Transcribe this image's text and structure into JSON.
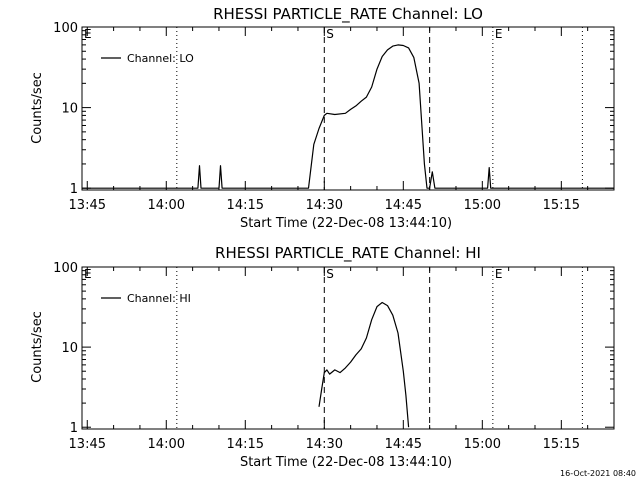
{
  "chart_data": [
    {
      "type": "line",
      "title": "RHESSI PARTICLE_RATE Channel: LO",
      "xlabel": "Start Time (22-Dec-08 13:44:10)",
      "ylabel": "Counts/sec",
      "yscale": "log",
      "ylim": [
        0.95,
        100
      ],
      "x_tick_labels": [
        "13:45",
        "14:00",
        "14:15",
        "14:30",
        "14:45",
        "15:00",
        "15:15"
      ],
      "y_tick_labels": [
        "1",
        "10",
        "100"
      ],
      "legend": {
        "label": "Channel: LO",
        "position": "top-left"
      },
      "markers": [
        {
          "label": "E",
          "time": "13:44",
          "style": "dotted"
        },
        {
          "label": "",
          "time": "14:02",
          "style": "dotted"
        },
        {
          "label": "S",
          "time": "14:30",
          "style": "dashed"
        },
        {
          "label": "",
          "time": "14:50",
          "style": "dashed"
        },
        {
          "label": "E",
          "time": "15:02",
          "style": "dotted"
        },
        {
          "label": "",
          "time": "15:19",
          "style": "dotted"
        }
      ],
      "series": [
        {
          "name": "Channel: LO",
          "points": [
            [
              "13:44",
              1
            ],
            [
              "14:06",
              1
            ],
            [
              "14:06.3",
              1.9
            ],
            [
              "14:06.6",
              1
            ],
            [
              "14:10",
              1
            ],
            [
              "14:10.3",
              1.9
            ],
            [
              "14:10.6",
              1
            ],
            [
              "14:27",
              1
            ],
            [
              "14:28",
              3.5
            ],
            [
              "14:29",
              5.5
            ],
            [
              "14:30",
              8
            ],
            [
              "14:30.5",
              8.5
            ],
            [
              "14:32",
              8.2
            ],
            [
              "14:34",
              8.5
            ],
            [
              "14:35",
              9.5
            ],
            [
              "14:36",
              10.5
            ],
            [
              "14:37",
              12
            ],
            [
              "14:38",
              13.5
            ],
            [
              "14:39",
              18
            ],
            [
              "14:40",
              30
            ],
            [
              "14:41",
              43
            ],
            [
              "14:42",
              52
            ],
            [
              "14:43",
              58
            ],
            [
              "14:44",
              60
            ],
            [
              "14:45",
              59
            ],
            [
              "14:46",
              55
            ],
            [
              "14:47",
              42
            ],
            [
              "14:48",
              20
            ],
            [
              "14:49",
              2
            ],
            [
              "14:49.5",
              1
            ],
            [
              "14:50",
              1
            ],
            [
              "14:50.5",
              1.6
            ],
            [
              "14:51",
              1
            ],
            [
              "15:01",
              1
            ],
            [
              "15:01.3",
              1.8
            ],
            [
              "15:01.6",
              1
            ],
            [
              "15:25",
              1
            ]
          ]
        }
      ]
    },
    {
      "type": "line",
      "title": "RHESSI PARTICLE_RATE Channel: HI",
      "xlabel": "Start Time (22-Dec-08 13:44:10)",
      "ylabel": "Counts/sec",
      "yscale": "log",
      "ylim": [
        0.95,
        100
      ],
      "x_tick_labels": [
        "13:45",
        "14:00",
        "14:15",
        "14:30",
        "14:45",
        "15:00",
        "15:15"
      ],
      "y_tick_labels": [
        "1",
        "10",
        "100"
      ],
      "legend": {
        "label": "Channel: HI",
        "position": "top-left"
      },
      "markers": [
        {
          "label": "E",
          "time": "13:44",
          "style": "dotted"
        },
        {
          "label": "",
          "time": "14:02",
          "style": "dotted"
        },
        {
          "label": "S",
          "time": "14:30",
          "style": "dashed"
        },
        {
          "label": "",
          "time": "14:50",
          "style": "dashed"
        },
        {
          "label": "E",
          "time": "15:02",
          "style": "dotted"
        },
        {
          "label": "",
          "time": "15:19",
          "style": "dotted"
        }
      ],
      "series": [
        {
          "name": "Channel: HI",
          "points": [
            [
              "14:29",
              1.8
            ],
            [
              "14:29.5",
              3
            ],
            [
              "14:30",
              4.8
            ],
            [
              "14:30.5",
              5.2
            ],
            [
              "14:31",
              4.6
            ],
            [
              "14:32",
              5.2
            ],
            [
              "14:33",
              4.8
            ],
            [
              "14:34",
              5.5
            ],
            [
              "14:35",
              6.5
            ],
            [
              "14:36",
              8
            ],
            [
              "14:37",
              9.5
            ],
            [
              "14:38",
              13
            ],
            [
              "14:39",
              22
            ],
            [
              "14:40",
              32
            ],
            [
              "14:41",
              36
            ],
            [
              "14:42",
              33
            ],
            [
              "14:43",
              25
            ],
            [
              "14:44",
              15
            ],
            [
              "14:45",
              5
            ],
            [
              "14:45.5",
              2.5
            ],
            [
              "14:46",
              1
            ]
          ]
        }
      ]
    }
  ],
  "footer": {
    "timestamp": "16-Oct-2021 08:40"
  }
}
